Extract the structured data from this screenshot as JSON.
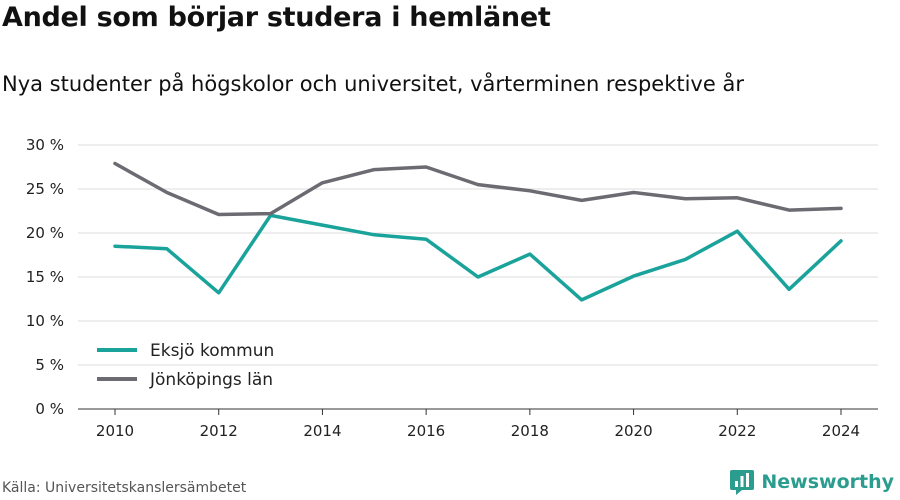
{
  "title": "Andel som börjar studera i hemlänet",
  "subtitle": "Nya studenter på högskolor och universitet, vårterminen respektive år",
  "source": "Källa: Universitetskanslersämbetet",
  "brand": {
    "name": "Newsworthy",
    "icon": "newsworthy-logo-icon",
    "color": "#2a9d8f"
  },
  "chart_data": {
    "type": "line",
    "x": [
      2010,
      2011,
      2012,
      2013,
      2014,
      2015,
      2016,
      2017,
      2018,
      2019,
      2020,
      2021,
      2022,
      2023,
      2024
    ],
    "x_ticks": [
      2010,
      2012,
      2014,
      2016,
      2018,
      2020,
      2022,
      2024
    ],
    "y_ticks": [
      0,
      5,
      10,
      15,
      20,
      25,
      30
    ],
    "y_tick_labels": [
      "0 %",
      "5 %",
      "10 %",
      "15 %",
      "20 %",
      "25 %",
      "30 %"
    ],
    "ylim": [
      0,
      30
    ],
    "grid": true,
    "legend_position": "bottom-left",
    "series": [
      {
        "name": "Eksjö kommun",
        "color": "#1aa39a",
        "values": [
          18.5,
          18.2,
          13.2,
          22.0,
          20.9,
          19.8,
          19.3,
          15.0,
          17.6,
          12.4,
          15.1,
          17.0,
          20.2,
          13.6,
          19.1
        ]
      },
      {
        "name": "Jönköpings län",
        "color": "#6d6b72",
        "values": [
          27.9,
          24.6,
          22.1,
          22.2,
          25.7,
          27.2,
          27.5,
          25.5,
          24.8,
          23.7,
          24.6,
          23.9,
          24.0,
          22.6,
          22.8
        ]
      }
    ]
  }
}
